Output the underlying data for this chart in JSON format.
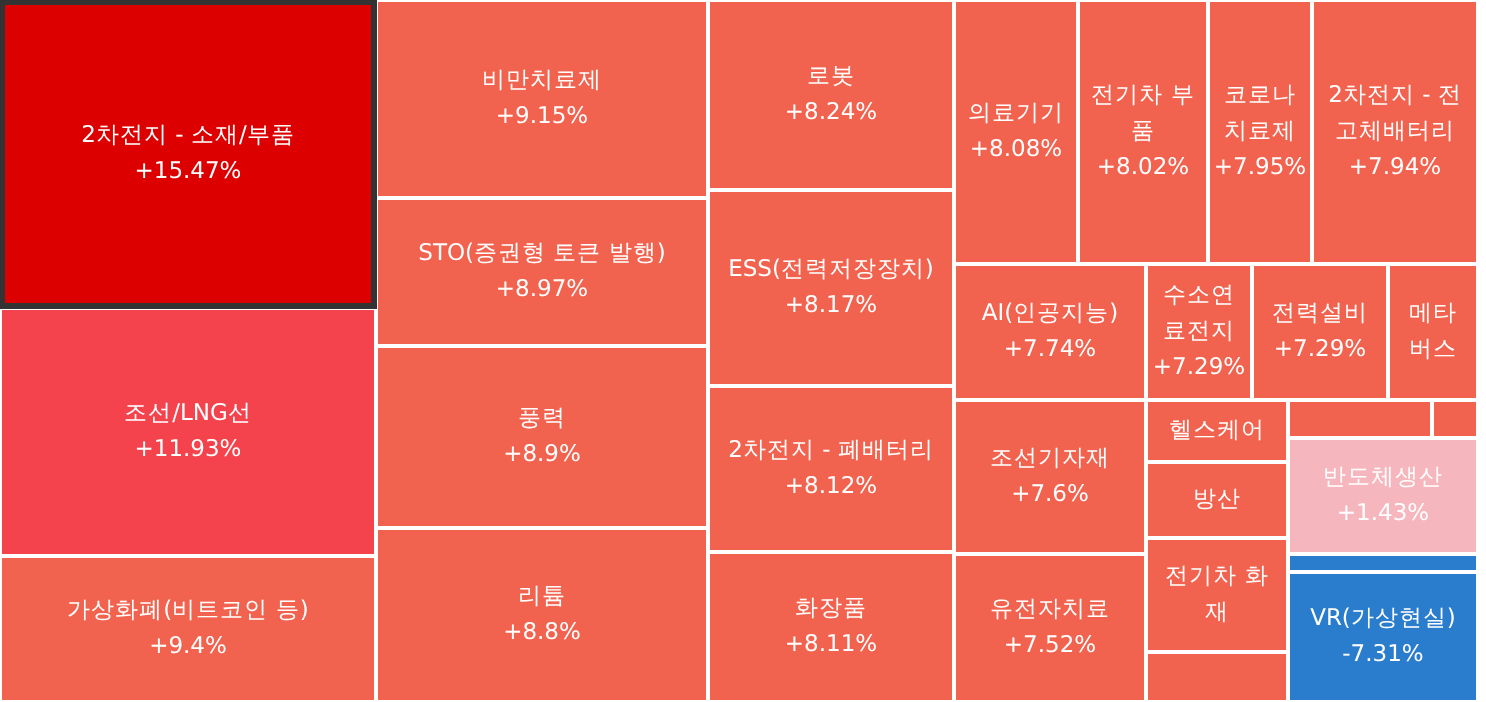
{
  "chart_data": {
    "type": "other",
    "categories": [
      "2차전지 - 소재/부품",
      "조선/LNG선",
      "가상화폐(비트코인 등)",
      "비만치료제",
      "STO(증권형 토큰 발행)",
      "풍력",
      "리튬",
      "로봇",
      "ESS(전력저장장치)",
      "2차전지 - 폐배터리",
      "화장품",
      "의료기기",
      "전기차 부품",
      "코로나 치료제",
      "2차전지 - 전고체배터리",
      "AI(인공지능)",
      "수소연료전지",
      "전력설비",
      "메타버스",
      "조선기자재",
      "유전자치료",
      "헬스케어",
      "방산",
      "전기차 화재",
      null,
      null,
      null,
      "반도체생산",
      null,
      "VR(가상현실)"
    ],
    "values": [
      15.47,
      11.93,
      9.4,
      9.15,
      8.97,
      8.9,
      8.8,
      8.24,
      8.17,
      8.12,
      8.11,
      8.08,
      8.02,
      7.95,
      7.94,
      7.74,
      7.29,
      7.29,
      null,
      7.6,
      7.52,
      null,
      null,
      null,
      null,
      null,
      null,
      1.43,
      null,
      -7.31
    ],
    "value_labels": [
      "+15.47%",
      "+11.93%",
      "+9.4%",
      "+9.15%",
      "+8.97%",
      "+8.9%",
      "+8.8%",
      "+8.24%",
      "+8.17%",
      "+8.12%",
      "+8.11%",
      "+8.08%",
      "+8.02%",
      "+7.95%",
      "+7.94%",
      "+7.74%",
      "+7.29%",
      "+7.29%",
      null,
      "+7.6%",
      "+7.52%",
      null,
      null,
      null,
      null,
      null,
      null,
      "+1.43%",
      null,
      "-7.31%"
    ],
    "colors": [
      "#dd0000",
      "#f4434d",
      "#f2634f",
      "#f2634f",
      "#f2634f",
      "#f2634f",
      "#f2634f",
      "#f2634f",
      "#f2634f",
      "#f2634f",
      "#f2634f",
      "#f2634f",
      "#f2634f",
      "#f2634f",
      "#f2634f",
      "#f2634f",
      "#f2634f",
      "#f2634f",
      "#f2634f",
      "#f2634f",
      "#f2634f",
      "#f2634f",
      "#f2634f",
      "#f2634f",
      "#f2634f",
      "#f2634f",
      "#f2634f",
      "#f6b6bd",
      "#2a7ccc",
      "#2a7ccc"
    ]
  }
}
